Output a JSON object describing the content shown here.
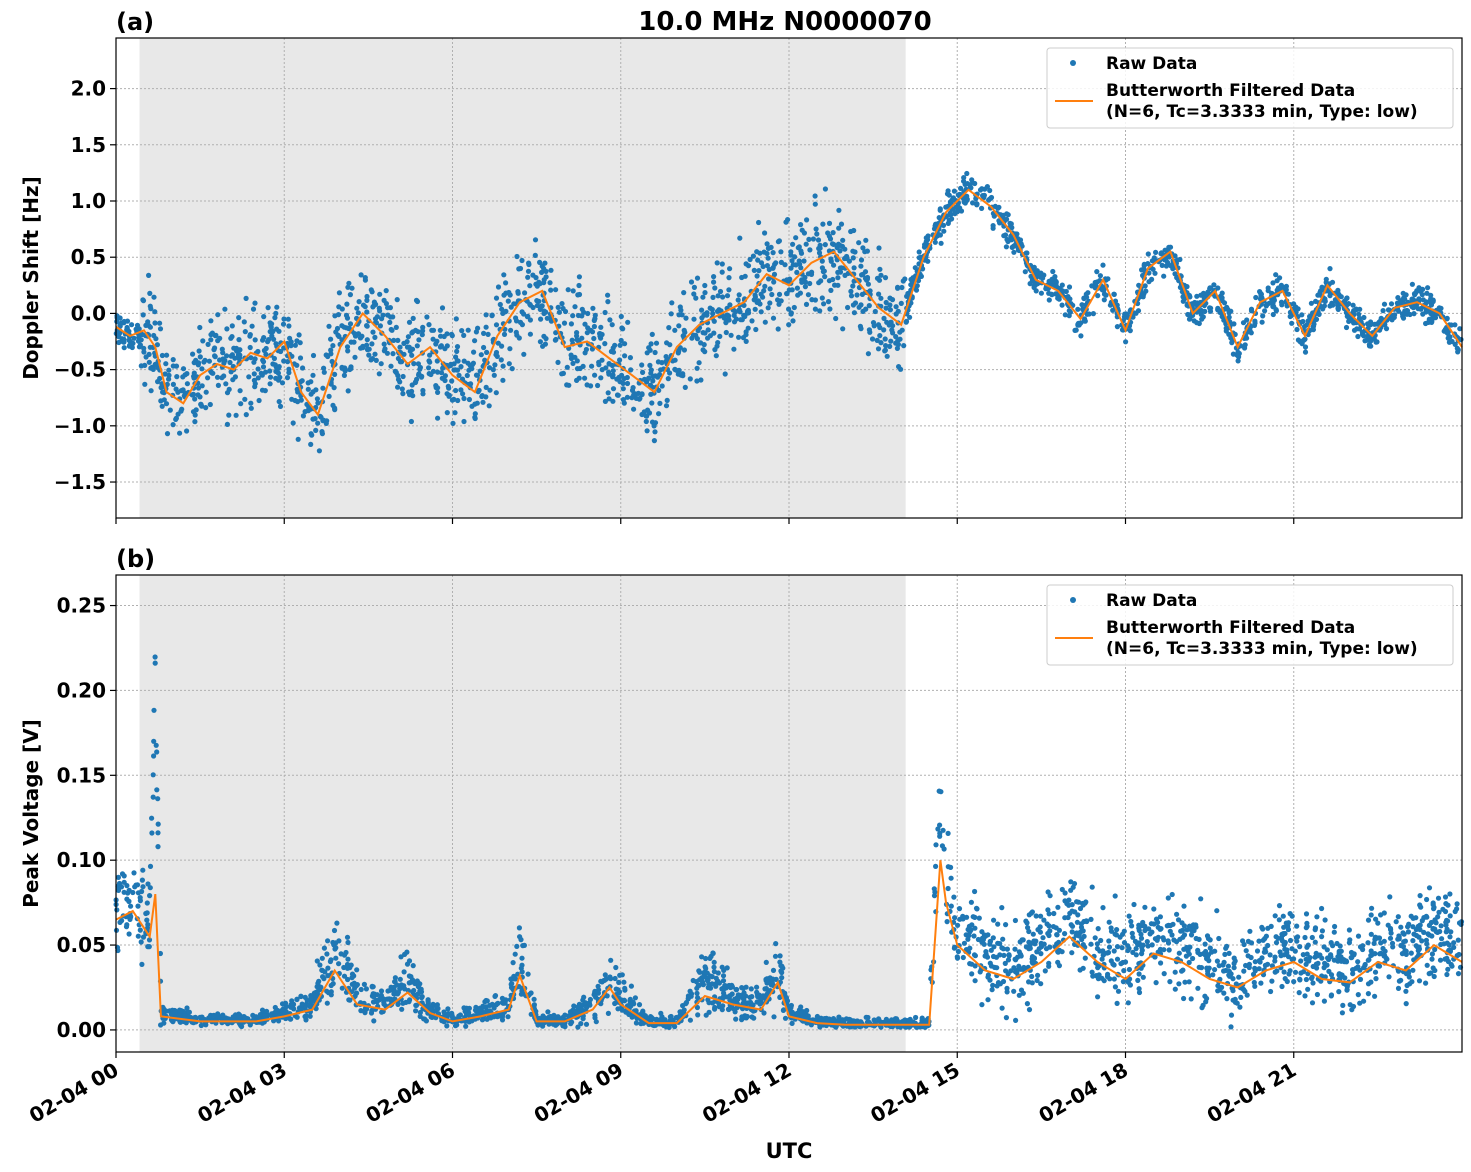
{
  "figure": {
    "title": "10.0 MHz N0000070",
    "xlabel": "UTC"
  },
  "colors": {
    "raw": "#1f77b4",
    "filtered": "#ff7f0e",
    "night_shade": "#e8e8e8",
    "grid": "#b0b0b0"
  },
  "chart_data": [
    {
      "type": "scatter",
      "panel_label": "(a)",
      "ylabel": "Doppler Shift [Hz]",
      "xlim_hours": [
        0,
        24
      ],
      "ylim": [
        -1.82,
        2.45
      ],
      "yticks": [
        -1.5,
        -1.0,
        -0.5,
        0.0,
        0.5,
        1.0,
        1.5,
        2.0
      ],
      "ytick_labels": [
        "−1.5",
        "−1.0",
        "−0.5",
        "0.0",
        "0.5",
        "1.0",
        "1.5",
        "2.0"
      ],
      "grid": true,
      "legend_position": "top-right",
      "shaded_interval_hours": [
        0.42,
        14.08
      ],
      "series": [
        {
          "name": "Raw Data",
          "style": "points",
          "x_hours": [
            0.0,
            0.25,
            0.5,
            0.7,
            0.9,
            1.2,
            1.5,
            1.8,
            2.1,
            2.4,
            2.7,
            3.0,
            3.3,
            3.6,
            4.0,
            4.4,
            4.8,
            5.2,
            5.6,
            6.0,
            6.4,
            6.8,
            7.2,
            7.6,
            8.0,
            8.4,
            8.8,
            9.2,
            9.6,
            10.0,
            10.4,
            10.8,
            11.2,
            11.6,
            12.0,
            12.4,
            12.8,
            13.2,
            13.6,
            14.0,
            14.4,
            14.8,
            15.2,
            15.6,
            16.0,
            16.4,
            16.8,
            17.2,
            17.6,
            18.0,
            18.4,
            18.8,
            19.2,
            19.6,
            20.0,
            20.4,
            20.8,
            21.2,
            21.6,
            22.0,
            22.4,
            22.8,
            23.2,
            23.6,
            24.0
          ],
          "y": [
            -0.12,
            -0.2,
            -0.15,
            -0.3,
            -0.7,
            -0.8,
            -0.55,
            -0.45,
            -0.5,
            -0.35,
            -0.4,
            -0.25,
            -0.7,
            -0.9,
            -0.3,
            0.0,
            -0.2,
            -0.45,
            -0.3,
            -0.55,
            -0.7,
            -0.2,
            0.1,
            0.2,
            -0.3,
            -0.25,
            -0.4,
            -0.55,
            -0.7,
            -0.3,
            -0.1,
            0.0,
            0.1,
            0.35,
            0.25,
            0.45,
            0.55,
            0.3,
            0.05,
            -0.1,
            0.5,
            0.9,
            1.1,
            0.95,
            0.7,
            0.3,
            0.2,
            -0.05,
            0.3,
            -0.15,
            0.4,
            0.55,
            0.0,
            0.2,
            -0.3,
            0.1,
            0.2,
            -0.2,
            0.25,
            0.0,
            -0.2,
            0.05,
            0.1,
            0.0,
            -0.3
          ]
        },
        {
          "name": "Butterworth Filtered Data\n(N=6, Tc=3.3333 min, Type: low)",
          "style": "line",
          "x_hours": [
            0.0,
            0.25,
            0.5,
            0.7,
            0.9,
            1.2,
            1.5,
            1.8,
            2.1,
            2.4,
            2.7,
            3.0,
            3.3,
            3.6,
            4.0,
            4.4,
            4.8,
            5.2,
            5.6,
            6.0,
            6.4,
            6.8,
            7.2,
            7.6,
            8.0,
            8.4,
            8.8,
            9.2,
            9.6,
            10.0,
            10.4,
            10.8,
            11.2,
            11.6,
            12.0,
            12.4,
            12.8,
            13.2,
            13.6,
            14.0,
            14.4,
            14.8,
            15.2,
            15.6,
            16.0,
            16.4,
            16.8,
            17.2,
            17.6,
            18.0,
            18.4,
            18.8,
            19.2,
            19.6,
            20.0,
            20.4,
            20.8,
            21.2,
            21.6,
            22.0,
            22.4,
            22.8,
            23.2,
            23.6,
            24.0
          ],
          "y": [
            -0.12,
            -0.2,
            -0.15,
            -0.3,
            -0.7,
            -0.8,
            -0.55,
            -0.45,
            -0.5,
            -0.35,
            -0.4,
            -0.25,
            -0.7,
            -0.9,
            -0.3,
            0.0,
            -0.2,
            -0.45,
            -0.3,
            -0.55,
            -0.7,
            -0.2,
            0.1,
            0.2,
            -0.3,
            -0.25,
            -0.4,
            -0.55,
            -0.7,
            -0.3,
            -0.1,
            0.0,
            0.1,
            0.35,
            0.25,
            0.45,
            0.55,
            0.3,
            0.05,
            -0.1,
            0.5,
            0.9,
            1.1,
            0.95,
            0.7,
            0.3,
            0.2,
            -0.05,
            0.3,
            -0.15,
            0.4,
            0.55,
            0.0,
            0.2,
            -0.3,
            0.1,
            0.2,
            -0.2,
            0.25,
            0.0,
            -0.2,
            0.05,
            0.1,
            0.0,
            -0.3
          ]
        }
      ]
    },
    {
      "type": "scatter",
      "panel_label": "(b)",
      "ylabel": "Peak Voltage [V]",
      "xlim_hours": [
        0,
        24
      ],
      "ylim": [
        -0.013,
        0.268
      ],
      "yticks": [
        0.0,
        0.05,
        0.1,
        0.15,
        0.2,
        0.25
      ],
      "ytick_labels": [
        "0.00",
        "0.05",
        "0.10",
        "0.15",
        "0.20",
        "0.25"
      ],
      "grid": true,
      "legend_position": "top-right",
      "shaded_interval_hours": [
        0.42,
        14.08
      ],
      "series": [
        {
          "name": "Raw Data",
          "style": "points",
          "x_hours": [
            0.0,
            0.3,
            0.6,
            0.7,
            0.8,
            1.5,
            2.5,
            3.0,
            3.5,
            3.9,
            4.3,
            4.8,
            5.2,
            5.6,
            6.0,
            6.5,
            7.0,
            7.2,
            7.5,
            8.0,
            8.5,
            8.8,
            9.0,
            9.5,
            10.0,
            10.5,
            11.0,
            11.5,
            11.8,
            12.0,
            12.5,
            13.0,
            13.5,
            14.0,
            14.5,
            14.7,
            14.8,
            15.0,
            15.5,
            16.0,
            16.5,
            17.0,
            17.5,
            18.0,
            18.5,
            19.0,
            19.5,
            20.0,
            20.5,
            21.0,
            21.5,
            22.0,
            22.5,
            23.0,
            23.5,
            24.0
          ],
          "y": [
            0.07,
            0.08,
            0.06,
            0.21,
            0.01,
            0.006,
            0.006,
            0.01,
            0.015,
            0.045,
            0.02,
            0.015,
            0.03,
            0.012,
            0.006,
            0.01,
            0.015,
            0.045,
            0.006,
            0.006,
            0.015,
            0.03,
            0.02,
            0.005,
            0.005,
            0.03,
            0.02,
            0.015,
            0.035,
            0.01,
            0.005,
            0.004,
            0.004,
            0.004,
            0.004,
            0.14,
            0.09,
            0.06,
            0.045,
            0.04,
            0.05,
            0.07,
            0.05,
            0.04,
            0.06,
            0.05,
            0.04,
            0.03,
            0.045,
            0.05,
            0.04,
            0.035,
            0.05,
            0.045,
            0.06,
            0.05
          ]
        },
        {
          "name": "Butterworth Filtered Data\n(N=6, Tc=3.3333 min, Type: low)",
          "style": "line",
          "x_hours": [
            0.0,
            0.3,
            0.6,
            0.7,
            0.8,
            1.5,
            2.5,
            3.0,
            3.5,
            3.9,
            4.3,
            4.8,
            5.2,
            5.6,
            6.0,
            6.5,
            7.0,
            7.2,
            7.5,
            8.0,
            8.5,
            8.8,
            9.0,
            9.5,
            10.0,
            10.5,
            11.0,
            11.5,
            11.8,
            12.0,
            12.5,
            13.0,
            13.5,
            14.0,
            14.5,
            14.7,
            14.8,
            15.0,
            15.5,
            16.0,
            16.5,
            17.0,
            17.5,
            18.0,
            18.5,
            19.0,
            19.5,
            20.0,
            20.5,
            21.0,
            21.5,
            22.0,
            22.5,
            23.0,
            23.5,
            24.0
          ],
          "y": [
            0.065,
            0.07,
            0.055,
            0.08,
            0.008,
            0.005,
            0.005,
            0.008,
            0.012,
            0.035,
            0.015,
            0.012,
            0.022,
            0.01,
            0.005,
            0.008,
            0.012,
            0.032,
            0.005,
            0.005,
            0.012,
            0.025,
            0.015,
            0.004,
            0.004,
            0.02,
            0.015,
            0.012,
            0.028,
            0.008,
            0.004,
            0.003,
            0.003,
            0.003,
            0.003,
            0.1,
            0.075,
            0.05,
            0.035,
            0.03,
            0.04,
            0.055,
            0.04,
            0.03,
            0.045,
            0.04,
            0.03,
            0.025,
            0.035,
            0.04,
            0.03,
            0.028,
            0.04,
            0.035,
            0.05,
            0.04
          ]
        }
      ]
    }
  ],
  "x_axis": {
    "tick_hours": [
      0,
      3,
      6,
      9,
      12,
      15,
      18,
      21
    ],
    "tick_labels": [
      "02-04 00",
      "02-04 03",
      "02-04 06",
      "02-04 09",
      "02-04 12",
      "02-04 15",
      "02-04 18",
      "02-04 21"
    ]
  }
}
